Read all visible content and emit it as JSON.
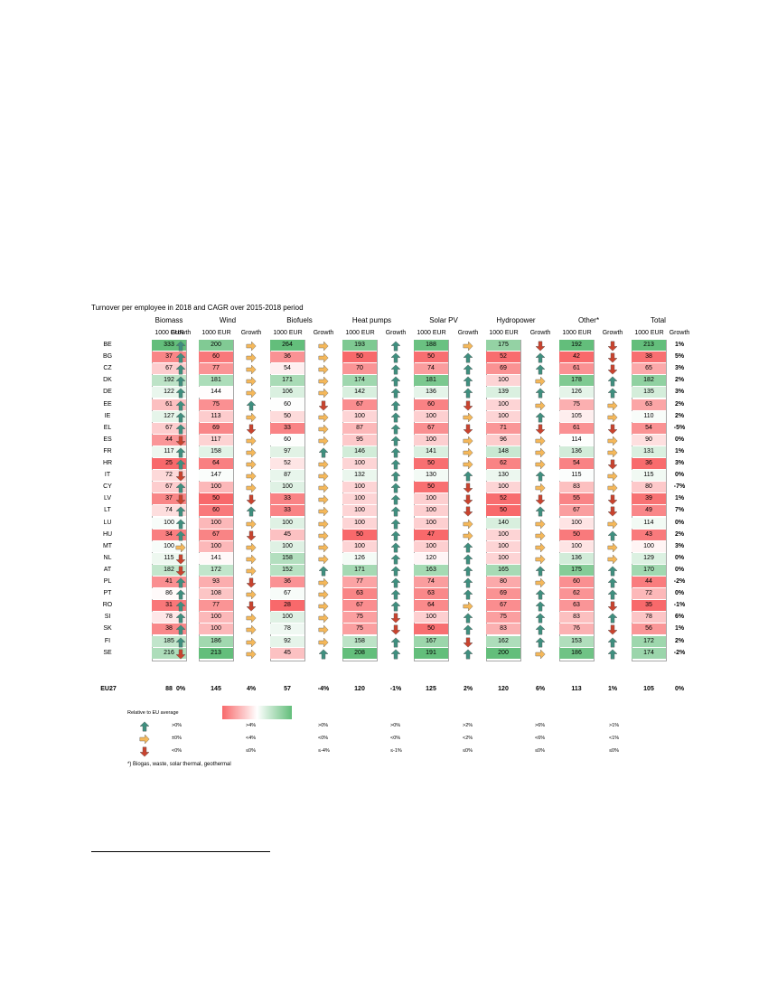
{
  "title": "Turnover per employee in 2018 and CAGR over 2015-2018 period",
  "countries": [
    "BE",
    "BG",
    "CZ",
    "DK",
    "DE",
    "EE",
    "IE",
    "EL",
    "ES",
    "FR",
    "HR",
    "IT",
    "CY",
    "LV",
    "LT",
    "LU",
    "HU",
    "MT",
    "NL",
    "AT",
    "PL",
    "PT",
    "RO",
    "SI",
    "SK",
    "FI",
    "SE"
  ],
  "eu_label": "EU27",
  "columns": [
    {
      "name": "Biomass",
      "value_label": "1000 EUR",
      "growth_label": "Growth",
      "values": [
        333,
        37,
        67,
        192,
        122,
        61,
        127,
        67,
        44,
        117,
        25,
        72,
        67,
        37,
        74,
        100,
        34,
        100,
        115,
        182,
        41,
        86,
        31,
        78,
        38,
        185,
        216
      ],
      "trend": [
        "up",
        "up",
        "up",
        "up",
        "up",
        "up",
        "up",
        "up",
        "down",
        "up",
        "up",
        "down",
        "up",
        "down",
        "up",
        "up",
        "up",
        "side",
        "down",
        "down",
        "up",
        "up",
        "up",
        "up",
        "up",
        "up",
        "down"
      ],
      "eu_value": "88",
      "eu_growth": "0%"
    },
    {
      "name": "Wind",
      "value_label": "1000 EUR",
      "growth_label": "Growth",
      "values": [
        200,
        60,
        77,
        181,
        144,
        75,
        113,
        69,
        117,
        158,
        64,
        147,
        100,
        50,
        60,
        100,
        67,
        100,
        141,
        172,
        93,
        108,
        77,
        100,
        100,
        186,
        213
      ],
      "trend": [
        "side",
        "side",
        "side",
        "side",
        "side",
        "up",
        "side",
        "down",
        "side",
        "side",
        "side",
        "side",
        "side",
        "down",
        "up",
        "side",
        "down",
        "side",
        "side",
        "side",
        "down",
        "side",
        "down",
        "side",
        "side",
        "side",
        "side"
      ],
      "eu_value": "145",
      "eu_growth": "4%"
    },
    {
      "name": "Biofuels",
      "value_label": "1000 EUR",
      "growth_label": "Growth",
      "values": [
        264,
        36,
        54,
        171,
        106,
        60,
        50,
        33,
        60,
        97,
        52,
        87,
        100,
        33,
        33,
        100,
        45,
        100,
        158,
        152,
        36,
        67,
        28,
        100,
        78,
        92,
        45
      ],
      "trend": [
        "side",
        "side",
        "side",
        "side",
        "side",
        "down",
        "side",
        "side",
        "side",
        "up",
        "side",
        "side",
        "side",
        "side",
        "side",
        "side",
        "side",
        "side",
        "side",
        "up",
        "side",
        "side",
        "side",
        "side",
        "side",
        "side",
        "up"
      ],
      "eu_value": "57",
      "eu_growth": "-4%"
    },
    {
      "name": "Heat pumps",
      "value_label": "1000 EUR",
      "growth_label": "Growth",
      "values": [
        193,
        50,
        70,
        174,
        142,
        67,
        100,
        87,
        95,
        146,
        100,
        132,
        100,
        100,
        100,
        100,
        50,
        100,
        126,
        171,
        77,
        63,
        67,
        75,
        75,
        158,
        208
      ],
      "trend": [
        "up",
        "up",
        "up",
        "up",
        "up",
        "up",
        "up",
        "up",
        "up",
        "up",
        "up",
        "up",
        "up",
        "up",
        "up",
        "up",
        "up",
        "up",
        "up",
        "up",
        "up",
        "up",
        "up",
        "down",
        "down",
        "up",
        "up"
      ],
      "eu_value": "120",
      "eu_growth": "-1%"
    },
    {
      "name": "Solar PV",
      "value_label": "1000 EUR",
      "growth_label": "Growth",
      "values": [
        188,
        50,
        74,
        181,
        136,
        60,
        100,
        67,
        100,
        141,
        50,
        130,
        50,
        100,
        100,
        100,
        47,
        100,
        120,
        163,
        74,
        63,
        64,
        100,
        50,
        167,
        191
      ],
      "trend": [
        "side",
        "up",
        "up",
        "up",
        "up",
        "down",
        "side",
        "down",
        "side",
        "side",
        "side",
        "up",
        "down",
        "down",
        "down",
        "side",
        "side",
        "up",
        "up",
        "up",
        "up",
        "up",
        "side",
        "up",
        "up",
        "down",
        "up"
      ],
      "eu_value": "125",
      "eu_growth": "2%"
    },
    {
      "name": "Hydropower",
      "value_label": "1000 EUR",
      "growth_label": "Growth",
      "values": [
        175,
        52,
        69,
        100,
        139,
        100,
        100,
        71,
        96,
        148,
        62,
        130,
        100,
        52,
        50,
        140,
        100,
        100,
        100,
        165,
        80,
        69,
        67,
        75,
        83,
        162,
        200
      ],
      "trend": [
        "down",
        "up",
        "up",
        "side",
        "up",
        "side",
        "up",
        "down",
        "side",
        "side",
        "side",
        "up",
        "side",
        "down",
        "up",
        "side",
        "side",
        "side",
        "side",
        "up",
        "side",
        "up",
        "up",
        "up",
        "up",
        "up",
        "side"
      ],
      "eu_value": "120",
      "eu_growth": "6%"
    },
    {
      "name": "Other*",
      "value_label": "1000 EUR",
      "growth_label": "Growth",
      "values": [
        192,
        42,
        61,
        178,
        126,
        75,
        105,
        61,
        114,
        136,
        54,
        115,
        83,
        55,
        67,
        100,
        50,
        100,
        136,
        175,
        60,
        62,
        63,
        83,
        76,
        153,
        186
      ],
      "trend": [
        "down",
        "down",
        "down",
        "up",
        "up",
        "side",
        "side",
        "down",
        "side",
        "side",
        "down",
        "side",
        "side",
        "down",
        "down",
        "side",
        "up",
        "side",
        "side",
        "up",
        "up",
        "up",
        "down",
        "up",
        "down",
        "up",
        "up"
      ],
      "eu_value": "113",
      "eu_growth": "1%"
    },
    {
      "name": "Total",
      "value_label": "1000 EUR",
      "growth_label": "Growth",
      "values": [
        213,
        38,
        65,
        182,
        135,
        63,
        110,
        54,
        90,
        131,
        36,
        115,
        80,
        39,
        49,
        114,
        43,
        100,
        129,
        170,
        44,
        72,
        35,
        78,
        56,
        172,
        174
      ],
      "growth": [
        "1%",
        "5%",
        "3%",
        "2%",
        "3%",
        "2%",
        "2%",
        "-5%",
        "0%",
        "1%",
        "3%",
        "0%",
        "-7%",
        "1%",
        "7%",
        "0%",
        "2%",
        "3%",
        "0%",
        "0%",
        "-2%",
        "0%",
        "-1%",
        "6%",
        "1%",
        "2%",
        "-2%"
      ],
      "eu_value": "105",
      "eu_growth": "0%"
    }
  ],
  "legend": {
    "title": "Relative to EU average",
    "rows": [
      {
        "icon": "up",
        "thresholds": [
          ">0%",
          ">4%",
          ">0%",
          ">0%",
          ">2%",
          ">6%",
          ">1%"
        ]
      },
      {
        "icon": "side",
        "thresholds": [
          "±0%",
          "<4%",
          "<0%",
          "<0%",
          "<2%",
          "<6%",
          "<1%"
        ]
      },
      {
        "icon": "down",
        "thresholds": [
          "<0%",
          "≤0%",
          "≤-4%",
          "≤-1%",
          "≤0%",
          "≤0%",
          "≤0%"
        ]
      }
    ]
  },
  "footnote": "*) Biogas, waste, solar thermal, geothermal",
  "colors": {
    "low": "#f8696b",
    "mid": "#ffffff",
    "high": "#63be7b",
    "up_arrow": "#3f8f7f",
    "side_arrow": "#f5b85a",
    "down_arrow": "#c9432e"
  }
}
